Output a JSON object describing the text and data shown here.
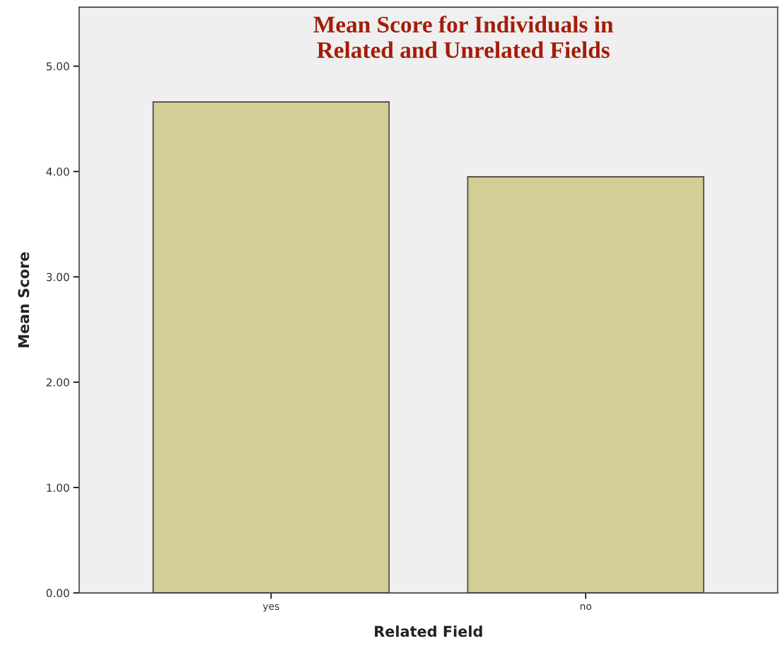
{
  "chart_data": {
    "type": "bar",
    "title": "Mean Score for Individuals in\nRelated and Unrelated Fields",
    "xlabel": "Related Field",
    "ylabel": "Mean Score",
    "categories": [
      "yes",
      "no"
    ],
    "values": [
      4.66,
      3.95
    ],
    "color": "#d3cd96",
    "ylim": [
      0,
      5.56
    ],
    "yticks": [
      {
        "value": 0,
        "label": "0.00"
      },
      {
        "value": 1,
        "label": "1.00"
      },
      {
        "value": 2,
        "label": "2.00"
      },
      {
        "value": 3,
        "label": "3.00"
      },
      {
        "value": 4,
        "label": "4.00"
      },
      {
        "value": 5,
        "label": "5.00"
      }
    ],
    "grid": false,
    "legend": false
  }
}
